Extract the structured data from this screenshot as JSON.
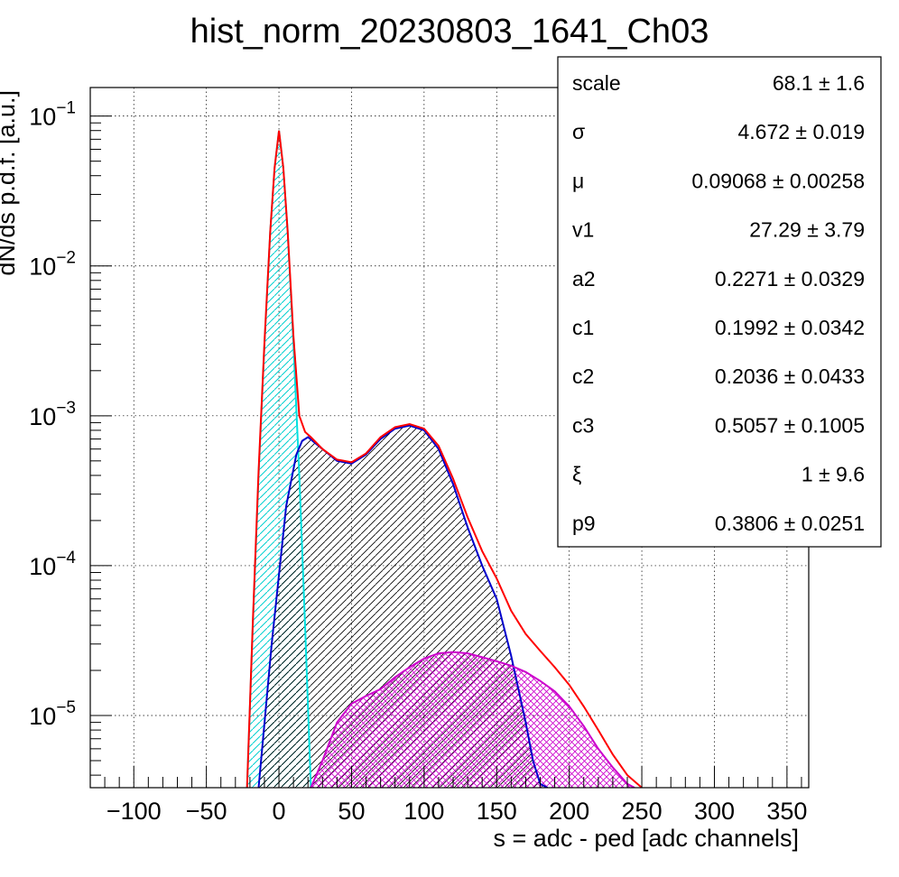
{
  "chart_data": {
    "type": "line",
    "title": "hist_norm_20230803_1641_Ch03",
    "xlabel": "s = adc - ped [adc channels]",
    "ylabel": "dN/ds p.d.f. [a.u.]",
    "xlim": [
      -130,
      365
    ],
    "ylim": [
      3.3e-06,
      0.155
    ],
    "y_scale": "log",
    "grid": true,
    "x_ticks": [
      {
        "value": -100,
        "label": "−100"
      },
      {
        "value": -50,
        "label": "−50"
      },
      {
        "value": 0,
        "label": "0"
      },
      {
        "value": 50,
        "label": "50"
      },
      {
        "value": 100,
        "label": "100"
      },
      {
        "value": 150,
        "label": "150"
      },
      {
        "value": 200,
        "label": "200"
      },
      {
        "value": 250,
        "label": "250"
      },
      {
        "value": 300,
        "label": "300"
      },
      {
        "value": 350,
        "label": "350"
      }
    ],
    "y_ticks": [
      {
        "value": 0.1,
        "base": "10",
        "exp": "−1"
      },
      {
        "value": 0.01,
        "base": "10",
        "exp": "−2"
      },
      {
        "value": 0.001,
        "base": "10",
        "exp": "−3"
      },
      {
        "value": 0.0001,
        "base": "10",
        "exp": "−4"
      },
      {
        "value": 1e-05,
        "base": "10",
        "exp": "−5"
      }
    ],
    "series": [
      {
        "color": "#00e0e0",
        "fill": true,
        "x": [
          -22,
          -18,
          -14,
          -10,
          -6,
          -3,
          0,
          3,
          6,
          10,
          14,
          18,
          22
        ],
        "y": [
          3.3e-06,
          4e-05,
          0.0004,
          0.003,
          0.017,
          0.045,
          0.08,
          0.045,
          0.017,
          0.003,
          0.0004,
          4e-05,
          3.3e-06
        ]
      },
      {
        "color": "#0000cc",
        "fill": true,
        "x": [
          -14,
          -5,
          5,
          12,
          16,
          20,
          30,
          40,
          50,
          60,
          70,
          80,
          90,
          100,
          110,
          120,
          130,
          140,
          150,
          160,
          170,
          175,
          180,
          185
        ],
        "y": [
          3.3e-06,
          3e-05,
          0.00025,
          0.00055,
          0.00068,
          0.00072,
          0.0006,
          0.0005,
          0.00048,
          0.00055,
          0.0007,
          0.00082,
          0.00086,
          0.0008,
          0.0006,
          0.00035,
          0.00018,
          0.0001,
          6e-05,
          2.5e-05,
          9e-06,
          5e-06,
          3.5e-06,
          3.3e-06
        ]
      },
      {
        "color": "#cc00cc",
        "fill": true,
        "x": [
          22,
          30,
          40,
          50,
          60,
          70,
          80,
          90,
          100,
          110,
          120,
          130,
          140,
          150,
          160,
          170,
          180,
          190,
          200,
          210,
          220,
          230,
          240,
          245
        ],
        "y": [
          3.3e-06,
          5e-06,
          9e-06,
          1.2e-05,
          1.35e-05,
          1.5e-05,
          1.8e-05,
          2.1e-05,
          2.4e-05,
          2.6e-05,
          2.65e-05,
          2.6e-05,
          2.45e-05,
          2.3e-05,
          2.15e-05,
          1.95e-05,
          1.7e-05,
          1.45e-05,
          1.15e-05,
          8.5e-06,
          6e-06,
          4.5e-06,
          3.5e-06,
          3.3e-06
        ]
      },
      {
        "color": "#ff0000",
        "fill": false,
        "x": [
          -22,
          -18,
          -14,
          -10,
          -6,
          -3,
          0,
          3,
          6,
          10,
          14,
          18,
          22,
          30,
          40,
          50,
          60,
          70,
          80,
          90,
          100,
          110,
          120,
          130,
          140,
          150,
          160,
          170,
          180,
          190,
          200,
          210,
          220,
          230,
          240,
          250
        ],
        "y": [
          3.3e-06,
          4.2e-05,
          0.00043,
          0.0031,
          0.017,
          0.045,
          0.08,
          0.045,
          0.017,
          0.0034,
          0.001,
          0.00078,
          0.00072,
          0.0006,
          0.00051,
          0.00049,
          0.00056,
          0.00072,
          0.00084,
          0.00088,
          0.00082,
          0.00063,
          0.00038,
          0.00021,
          0.000125,
          8.2e-05,
          5e-05,
          3.5e-05,
          2.7e-05,
          2.1e-05,
          1.6e-05,
          1.15e-05,
          8e-06,
          5.5e-06,
          4e-06,
          3.3e-06
        ]
      }
    ],
    "stats_box": [
      {
        "name": "scale",
        "value": "68.1 ± 1.6"
      },
      {
        "name": "σ",
        "value": "4.672 ± 0.019"
      },
      {
        "name": "μ",
        "value": "0.09068 ± 0.00258"
      },
      {
        "name": "v1",
        "value": "27.29 ± 3.79"
      },
      {
        "name": "a2",
        "value": "0.2271 ± 0.0329"
      },
      {
        "name": "c1",
        "value": "0.1992 ± 0.0342"
      },
      {
        "name": "c2",
        "value": "0.2036 ± 0.0433"
      },
      {
        "name": "c3",
        "value": "0.5057 ± 0.1005"
      },
      {
        "name": "ξ",
        "value": "1 ± 9.6"
      },
      {
        "name": "p9",
        "value": "0.3806 ± 0.0251"
      }
    ]
  }
}
